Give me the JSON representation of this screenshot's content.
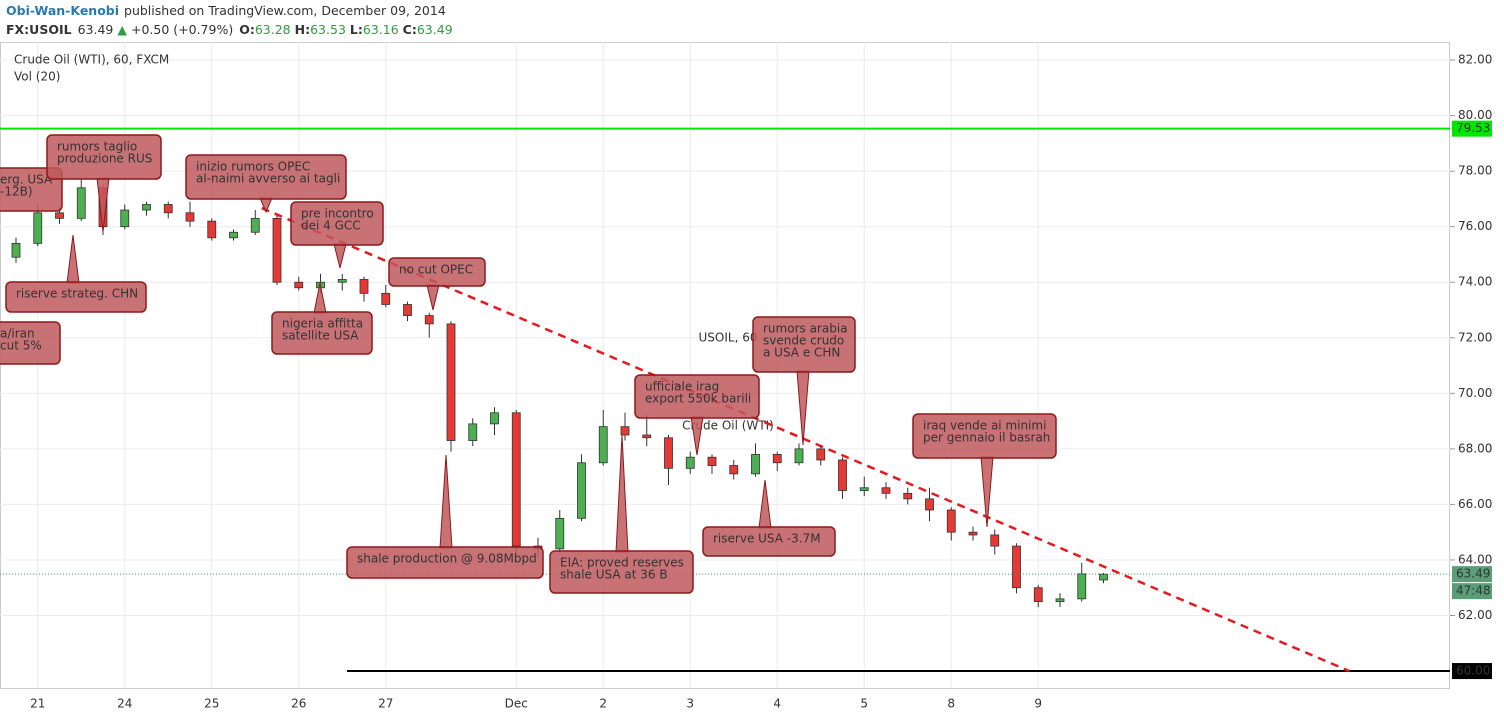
{
  "header": {
    "author": "Obi-Wan-Kenobi",
    "published": "published on TradingView.com, December 09, 2014",
    "symbol": "FX:USOIL",
    "last": "63.49",
    "arrow": "▲",
    "change": "+0.50 (+0.79%)",
    "o_label": "O:",
    "o": "63.28",
    "h_label": "H:",
    "h": "63.53",
    "l_label": "L:",
    "l": "63.16",
    "c_label": "C:",
    "c": "63.49"
  },
  "chart_data": {
    "type": "candlestick",
    "legend": [
      "Crude Oil (WTI), 60, FXCM",
      "Vol (20)"
    ],
    "watermark": {
      "symbol": "USOIL, 60",
      "name": "Crude Oil (WTI)"
    },
    "categories": [
      null,
      "21",
      null,
      null,
      null,
      "24",
      null,
      null,
      null,
      "25",
      null,
      null,
      null,
      "26",
      null,
      null,
      null,
      "27",
      null,
      null,
      null,
      null,
      null,
      "Dec",
      null,
      null,
      null,
      "2",
      null,
      null,
      null,
      "3",
      null,
      null,
      null,
      "4",
      null,
      null,
      null,
      "5",
      null,
      null,
      null,
      "8",
      null,
      null,
      null,
      "9",
      null,
      null,
      null
    ],
    "open": [
      74.9,
      75.4,
      76.5,
      76.3,
      77.4,
      76.0,
      76.6,
      76.8,
      76.5,
      76.2,
      75.6,
      75.8,
      76.3,
      74.0,
      73.8,
      74.0,
      74.1,
      73.6,
      73.2,
      72.8,
      72.5,
      68.3,
      68.9,
      69.3,
      64.5,
      64.4,
      65.5,
      67.5,
      68.8,
      68.5,
      68.4,
      67.3,
      67.7,
      67.4,
      67.1,
      67.8,
      67.5,
      68.0,
      67.6,
      66.5,
      66.6,
      66.4,
      66.2,
      65.8,
      65.0,
      64.9,
      64.5,
      63.0,
      62.5,
      62.6,
      63.28
    ],
    "high": [
      75.6,
      76.8,
      76.7,
      77.7,
      77.5,
      76.8,
      76.9,
      76.9,
      76.9,
      76.3,
      75.9,
      76.6,
      76.4,
      74.2,
      74.3,
      74.3,
      74.2,
      73.9,
      73.3,
      72.9,
      72.6,
      69.1,
      69.5,
      69.4,
      64.8,
      65.8,
      67.8,
      69.4,
      69.3,
      69.2,
      68.5,
      67.9,
      67.8,
      67.6,
      68.2,
      67.9,
      68.2,
      68.1,
      67.7,
      67.0,
      66.8,
      66.6,
      66.6,
      65.9,
      65.2,
      65.1,
      64.6,
      63.1,
      62.8,
      63.9,
      63.53
    ],
    "low": [
      74.7,
      75.3,
      76.1,
      76.2,
      75.7,
      75.9,
      76.4,
      76.3,
      76.0,
      75.5,
      75.5,
      75.7,
      73.9,
      73.7,
      73.6,
      73.7,
      73.3,
      73.1,
      72.6,
      72.0,
      67.9,
      68.1,
      68.5,
      64.2,
      64.1,
      64.3,
      65.4,
      67.4,
      68.3,
      68.1,
      66.7,
      67.1,
      67.1,
      66.9,
      67.0,
      67.2,
      67.4,
      67.4,
      66.2,
      66.3,
      66.2,
      66.0,
      65.4,
      64.7,
      64.7,
      64.2,
      62.8,
      62.3,
      62.3,
      62.5,
      63.16
    ],
    "close": [
      75.4,
      76.5,
      76.3,
      77.4,
      76.0,
      76.6,
      76.8,
      76.5,
      76.2,
      75.6,
      75.8,
      76.3,
      74.0,
      73.8,
      74.0,
      74.1,
      73.6,
      73.2,
      72.8,
      72.5,
      68.3,
      68.9,
      69.3,
      64.5,
      64.4,
      65.5,
      67.5,
      68.8,
      68.5,
      68.4,
      67.3,
      67.7,
      67.4,
      67.1,
      67.8,
      67.5,
      68.0,
      67.6,
      66.5,
      66.6,
      66.4,
      66.2,
      65.8,
      65.0,
      64.9,
      64.5,
      63.0,
      62.5,
      62.6,
      63.5,
      63.49
    ],
    "up_color": "#4caf50",
    "down_color": "#e53935",
    "ylim": [
      59.39,
      82.65
    ],
    "yticks": [
      {
        "value": 62,
        "label": "62.00"
      },
      {
        "value": 64,
        "label": "64.00"
      },
      {
        "value": 66,
        "label": "66.00"
      },
      {
        "value": 68,
        "label": "68.00"
      },
      {
        "value": 70,
        "label": "70.00"
      },
      {
        "value": 72,
        "label": "72.00"
      },
      {
        "value": 74,
        "label": "74.00"
      },
      {
        "value": 76,
        "label": "76.00"
      },
      {
        "value": 78,
        "label": "78.00"
      },
      {
        "value": 80,
        "label": "80.00"
      },
      {
        "value": 82,
        "label": "82.00"
      }
    ],
    "grid": true,
    "levels": [
      {
        "value": 79.53,
        "label": "79.53",
        "color": "#00e600"
      },
      {
        "value": 60,
        "label": "60.00",
        "color": "#000000"
      }
    ],
    "trendline": {
      "x": [
        11.3,
        61.3
      ],
      "values": [
        76.67,
        60.0
      ],
      "color": "#e8191e"
    },
    "countdown": "47:48",
    "annotations": [
      {
        "lines": [
          "erg. USA",
          "-12B)"
        ]
      },
      {
        "lines": [
          "rumors taglio",
          "produzione RUS"
        ]
      },
      {
        "lines": [
          "inizio rumors OPEC",
          "al-naimi avverso ai tagli"
        ]
      },
      {
        "lines": [
          "pre incontro",
          "dei 4 GCC"
        ]
      },
      {
        "lines": [
          "no cut OPEC"
        ]
      },
      {
        "lines": [
          "riserve strateg. CHN"
        ]
      },
      {
        "lines": [
          "a/iran",
          "cut 5%"
        ]
      },
      {
        "lines": [
          "nigeria affitta",
          "satellite USA"
        ]
      },
      {
        "lines": [
          "rumors arabia",
          "svende crudo",
          "a USA e CHN"
        ]
      },
      {
        "lines": [
          "ufficiale irag",
          "export 550k barili"
        ]
      },
      {
        "lines": [
          "iraq vende ai minimi",
          "per gennaio il basrah"
        ]
      },
      {
        "lines": [
          "shale production @ 9.08Mbpd"
        ]
      },
      {
        "lines": [
          "EIA: proved reserves",
          "shale USA at 36 B"
        ]
      },
      {
        "lines": [
          "riserve USA -3.7M"
        ]
      }
    ]
  }
}
